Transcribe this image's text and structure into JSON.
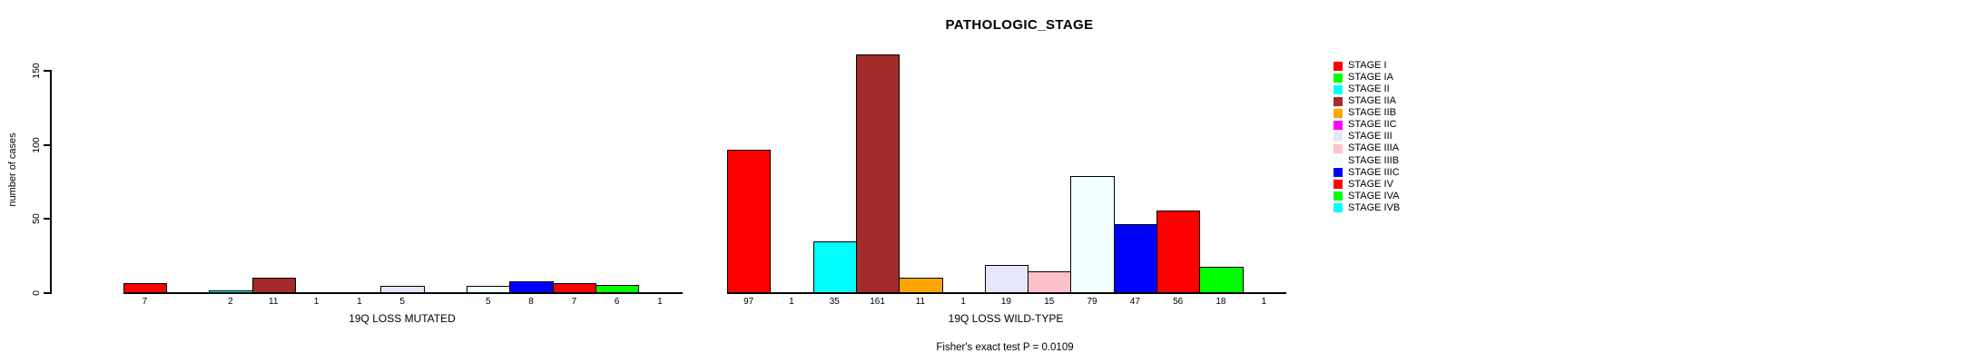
{
  "title": "PATHOLOGIC_STAGE",
  "chart_data": {
    "type": "bar",
    "title": "PATHOLOGIC_STAGE",
    "xlabel": "",
    "ylabel": "number of cases",
    "yticks": [
      0,
      50,
      100,
      150
    ],
    "ylim": [
      0,
      170
    ],
    "grid": false,
    "legend_position": "right",
    "value_labels_under_bars": true,
    "categories": [
      "STAGE I",
      "STAGE IA",
      "STAGE II",
      "STAGE IIA",
      "STAGE IIB",
      "STAGE IIC",
      "STAGE III",
      "STAGE IIIA",
      "STAGE IIIB",
      "STAGE IIIC",
      "STAGE IV",
      "STAGE IVA",
      "STAGE IVB"
    ],
    "colors": [
      "#FF0000",
      "#00FF00",
      "#00FFFF",
      "#A52A2A",
      "#FFA500",
      "#FF00FF",
      "#E6E6FA",
      "#FFC0CB",
      "#F0FFFF",
      "#0000FF",
      "#FF0000",
      "#00FF00",
      "#00FFFF"
    ],
    "groups": [
      {
        "label": "19Q LOSS MUTATED",
        "values": [
          7,
          0,
          2,
          11,
          1,
          1,
          5,
          0,
          5,
          8,
          7,
          6,
          1
        ]
      },
      {
        "label": "19Q LOSS WILD-TYPE",
        "values": [
          97,
          1,
          35,
          161,
          11,
          1,
          19,
          15,
          79,
          47,
          56,
          18,
          1
        ]
      }
    ],
    "annotation": "Fisher's exact test P = 0.0109",
    "bar_border_color": "#000000",
    "axis_color": "#000000"
  }
}
